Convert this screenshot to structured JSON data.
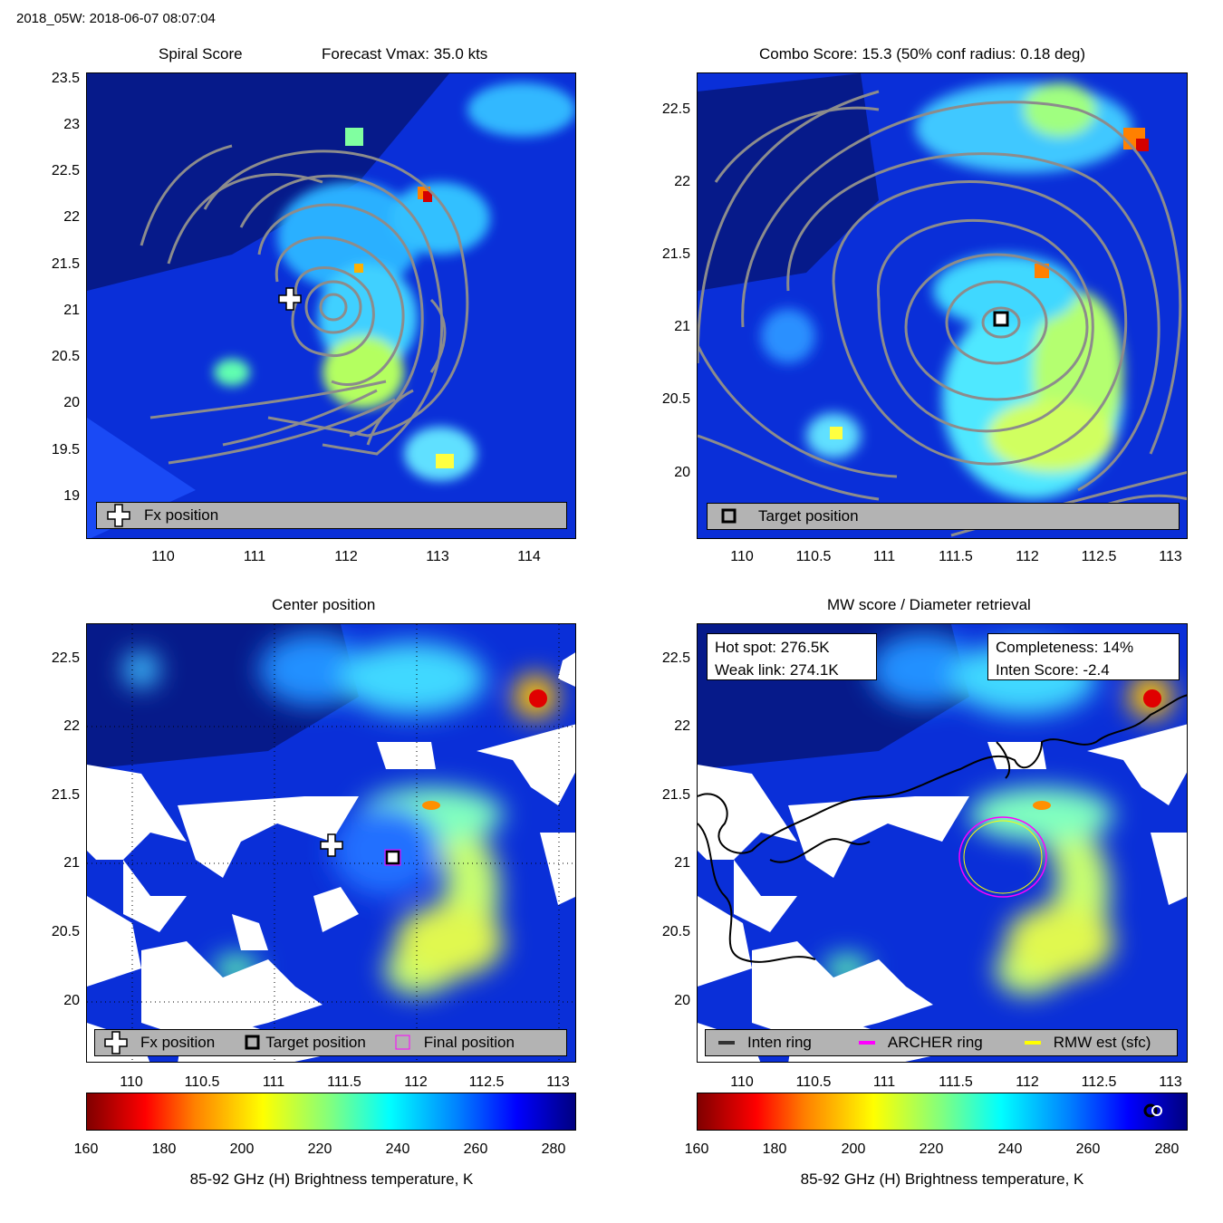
{
  "header": {
    "suptitle": "2018_05W: 2018-06-07 08:07:04"
  },
  "panels": {
    "top_left": {
      "title_left": "Spiral Score",
      "title_right": "Forecast Vmax: 35.0 kts",
      "yticks": [
        "23.5",
        "23",
        "22.5",
        "22",
        "21.5",
        "21",
        "20.5",
        "20",
        "19.5",
        "19"
      ],
      "xticks": [
        "110",
        "111",
        "112",
        "113",
        "114"
      ],
      "legend": "Fx position"
    },
    "top_right": {
      "title": "Combo Score: 15.3  (50% conf radius: 0.18 deg)",
      "yticks": [
        "22.5",
        "22",
        "21.5",
        "21",
        "20.5",
        "20"
      ],
      "xticks": [
        "110",
        "110.5",
        "111",
        "111.5",
        "112",
        "112.5",
        "113"
      ],
      "legend": "Target position"
    },
    "bottom_left": {
      "title": "Center position",
      "yticks": [
        "22.5",
        "22",
        "21.5",
        "21",
        "20.5",
        "20"
      ],
      "xticks": [
        "110",
        "110.5",
        "111",
        "111.5",
        "112",
        "112.5",
        "113"
      ],
      "legend": [
        "Fx position",
        "Target position",
        "Final position"
      ]
    },
    "bottom_right": {
      "title": "MW score / Diameter retrieval",
      "yticks": [
        "22.5",
        "22",
        "21.5",
        "21",
        "20.5",
        "20"
      ],
      "xticks": [
        "110",
        "110.5",
        "111",
        "111.5",
        "112",
        "112.5",
        "113"
      ],
      "info_left": [
        "Hot spot: 276.5K",
        "Weak link: 274.1K"
      ],
      "info_right": [
        "Completeness: 14%",
        "Inten Score: -2.4"
      ],
      "legend": [
        "Inten ring",
        "ARCHER ring",
        "RMW est (sfc)"
      ]
    }
  },
  "colorbar": {
    "ticks": [
      "160",
      "180",
      "200",
      "220",
      "240",
      "260",
      "280"
    ],
    "label": "85-92 GHz (H) Brightness temperature, K"
  },
  "colors": {
    "contour": "#8c8c8c",
    "archer_ring": "#ff00ff",
    "rmw_ring": "#ffff00",
    "inten_ring": "#333333",
    "background_cold": "#0a2fd8"
  },
  "chart_data": [
    {
      "type": "heatmap",
      "title": "Spiral Score",
      "subtitle": "Forecast Vmax: 35.0 kts",
      "xlim": [
        109.2,
        114.5
      ],
      "ylim": [
        18.6,
        23.6
      ],
      "fx_position": [
        111.4,
        21.15
      ]
    },
    {
      "type": "heatmap",
      "title": "Combo Score: 15.3  (50% conf radius: 0.18 deg)",
      "xlim": [
        109.7,
        113.15
      ],
      "ylim": [
        19.6,
        22.75
      ],
      "target_position": [
        111.85,
        21.05
      ]
    },
    {
      "type": "heatmap",
      "title": "Center position",
      "xlim": [
        109.7,
        113.15
      ],
      "ylim": [
        19.6,
        22.75
      ],
      "fx_position": [
        111.4,
        21.15
      ],
      "target_position": [
        111.85,
        21.05
      ],
      "final_position": [
        111.85,
        21.05
      ]
    },
    {
      "type": "heatmap",
      "title": "MW score / Diameter retrieval",
      "xlim": [
        109.7,
        113.15
      ],
      "ylim": [
        19.6,
        22.75
      ],
      "ring_center": [
        111.85,
        21.05
      ],
      "ring_radius_deg": 0.27
    }
  ]
}
